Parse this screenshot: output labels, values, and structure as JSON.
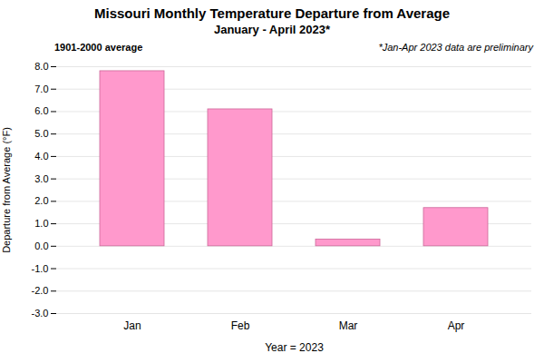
{
  "chart_data": {
    "type": "bar",
    "title": "Missouri Monthly Temperature Departure from Average",
    "subtitle": "January - April 2023*",
    "categories": [
      "Jan",
      "Feb",
      "Mar",
      "Apr"
    ],
    "values": [
      7.8,
      6.1,
      0.3,
      1.7
    ],
    "color": "#FF99CC",
    "xlabel": "Year = 2023",
    "ylabel": "Departure from Average (°F)",
    "ylim": [
      -3.0,
      8.0
    ],
    "yticks": [
      {
        "value": -3.0,
        "label": "-3.0"
      },
      {
        "value": -2.0,
        "label": "-2.0"
      },
      {
        "value": -1.0,
        "label": "-1.0"
      },
      {
        "value": 0.0,
        "label": "0.0"
      },
      {
        "value": 1.0,
        "label": "1.0"
      },
      {
        "value": 2.0,
        "label": "2.0"
      },
      {
        "value": 3.0,
        "label": "3.0"
      },
      {
        "value": 4.0,
        "label": "4.0"
      },
      {
        "value": 5.0,
        "label": "5.0"
      },
      {
        "value": 6.0,
        "label": "6.0"
      },
      {
        "value": 7.0,
        "label": "7.0"
      },
      {
        "value": 8.0,
        "label": "8.0"
      }
    ],
    "grid": true,
    "annotations": [
      "1901-2000 average",
      "*Jan-Apr 2023 data are preliminary"
    ]
  }
}
